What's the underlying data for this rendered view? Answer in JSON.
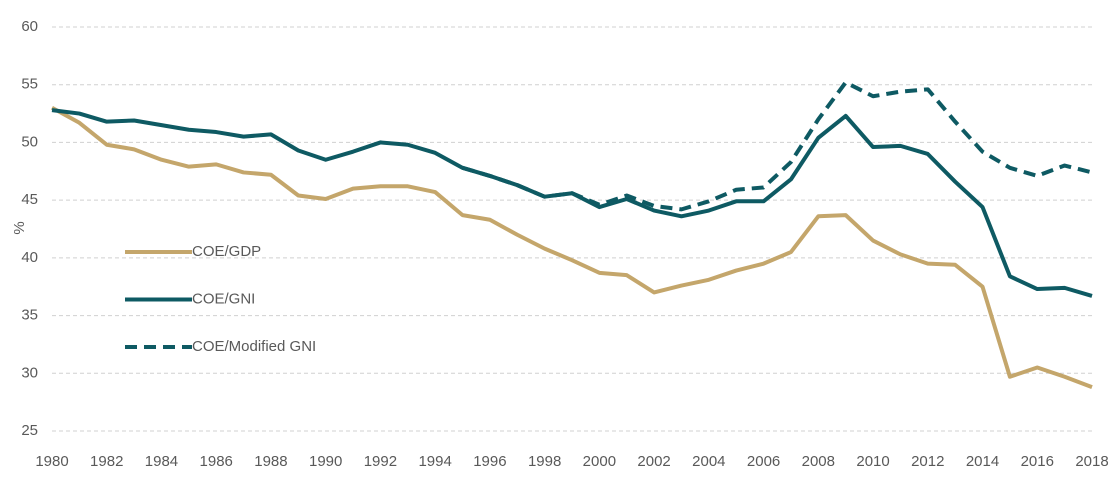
{
  "chart_data": {
    "type": "line",
    "y_label": "%",
    "x": [
      1980,
      1981,
      1982,
      1983,
      1984,
      1985,
      1986,
      1987,
      1988,
      1989,
      1990,
      1991,
      1992,
      1993,
      1994,
      1995,
      1996,
      1997,
      1998,
      1999,
      2000,
      2001,
      2002,
      2003,
      2004,
      2005,
      2006,
      2007,
      2008,
      2009,
      2010,
      2011,
      2012,
      2013,
      2014,
      2015,
      2016,
      2017,
      2018
    ],
    "xlim": [
      1980,
      2018
    ],
    "xticks": [
      1980,
      1982,
      1984,
      1986,
      1988,
      1990,
      1992,
      1994,
      1996,
      1998,
      2000,
      2002,
      2004,
      2006,
      2008,
      2010,
      2012,
      2014,
      2016,
      2018
    ],
    "ylim": [
      25,
      60
    ],
    "yticks": [
      25,
      30,
      35,
      40,
      45,
      50,
      55,
      60
    ],
    "grid": true,
    "legend": "left",
    "series": [
      {
        "name": "COE/GDP",
        "color": "#c4a66b",
        "dash": false,
        "values": [
          53.0,
          51.7,
          49.8,
          49.4,
          48.5,
          47.9,
          48.1,
          47.4,
          47.2,
          45.4,
          45.1,
          46.0,
          46.2,
          46.2,
          45.7,
          43.7,
          43.3,
          42.0,
          40.8,
          39.8,
          38.7,
          38.5,
          37.0,
          37.6,
          38.1,
          38.9,
          39.5,
          40.5,
          43.6,
          43.7,
          41.5,
          40.3,
          39.5,
          39.4,
          37.5,
          29.7,
          30.5,
          29.7,
          28.8
        ]
      },
      {
        "name": "COE/GNI",
        "color": "#0e5a63",
        "dash": false,
        "values": [
          52.8,
          52.5,
          51.8,
          51.9,
          51.5,
          51.1,
          50.9,
          50.5,
          50.7,
          49.3,
          48.5,
          49.2,
          50.0,
          49.8,
          49.1,
          47.8,
          47.1,
          46.3,
          45.3,
          45.6,
          44.4,
          45.1,
          44.1,
          43.6,
          44.1,
          44.9,
          44.9,
          46.8,
          50.4,
          52.3,
          49.6,
          49.7,
          49.0,
          46.6,
          44.4,
          38.4,
          37.3,
          37.4,
          36.7
        ]
      },
      {
        "name": "COE/Modified GNI",
        "color": "#0e5a63",
        "dash": true,
        "values": [
          null,
          null,
          null,
          null,
          null,
          null,
          null,
          null,
          null,
          null,
          null,
          null,
          null,
          null,
          null,
          47.8,
          47.1,
          46.3,
          45.3,
          45.6,
          44.6,
          45.4,
          44.5,
          44.2,
          44.9,
          45.9,
          46.1,
          48.3,
          52.0,
          55.2,
          54.0,
          54.4,
          54.6,
          51.8,
          49.2,
          47.8,
          47.1,
          48.0,
          47.4
        ]
      }
    ]
  }
}
